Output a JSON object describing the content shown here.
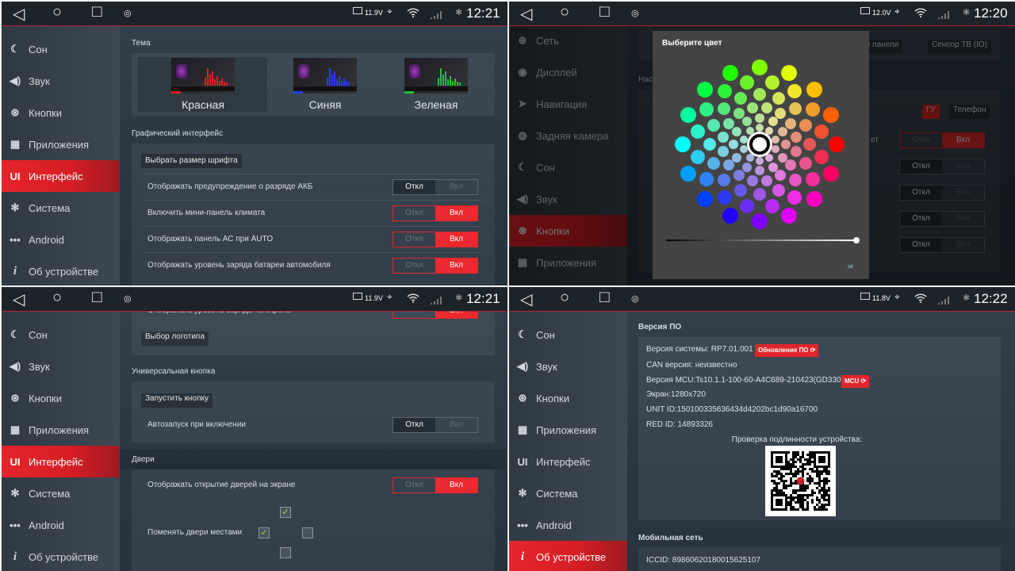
{
  "accent": "#e8232b",
  "toggle_labels": {
    "off": "Откл",
    "on": "Вкл"
  },
  "panels": [
    {
      "status": {
        "voltage": "11.9V",
        "time": "12:21"
      },
      "sidebar": {
        "selected": 4,
        "items": [
          {
            "label": "Сон",
            "icon": "moon-icon"
          },
          {
            "label": "Звук",
            "icon": "speaker-icon"
          },
          {
            "label": "Кнопки",
            "icon": "steering-wheel-icon"
          },
          {
            "label": "Приложения",
            "icon": "apps-icon"
          },
          {
            "label": "Интерфейс",
            "icon": "ui-icon"
          },
          {
            "label": "Система",
            "icon": "gears-icon"
          },
          {
            "label": "Android",
            "icon": "dots-icon"
          },
          {
            "label": "Об устройстве",
            "icon": "info-icon"
          }
        ]
      },
      "theme_title": "Тема",
      "themes": [
        {
          "label": "Красная",
          "color": "#e02020",
          "selected": true
        },
        {
          "label": "Синяя",
          "color": "#2a3cf0",
          "selected": false
        },
        {
          "label": "Зеленая",
          "color": "#22c23a",
          "selected": false
        }
      ],
      "gui_title": "Графический интерфейс",
      "font_button": "Выбрать размер шрифта",
      "rows": [
        {
          "label": "Отображать предупреждение о разряде АКБ",
          "state": "off"
        },
        {
          "label": "Включить мини-панель климата",
          "state": "on"
        },
        {
          "label": "Отображать панель АС при AUTO",
          "state": "on"
        },
        {
          "label": "Отображать уровень заряда батареи автомобиля",
          "state": "on"
        }
      ]
    },
    {
      "status": {
        "voltage": "12.0V",
        "time": "12:20"
      },
      "sidebar": {
        "selected": 6,
        "items": [
          {
            "label": "Сеть",
            "icon": "globe-icon"
          },
          {
            "label": "Дисплей",
            "icon": "display-icon"
          },
          {
            "label": "Навигация",
            "icon": "navigation-icon"
          },
          {
            "label": "Задняя камера",
            "icon": "camera-icon"
          },
          {
            "label": "Сон",
            "icon": "moon-icon"
          },
          {
            "label": "Звук",
            "icon": "speaker-icon"
          },
          {
            "label": "Кнопки",
            "icon": "steering-wheel-icon"
          },
          {
            "label": "Приложения",
            "icon": "apps-icon"
          }
        ]
      },
      "bg": {
        "tab_buttons": [
          "Кнопки панели",
          "Сенсор ТВ (IO)"
        ],
        "section_fragment": "Нас",
        "source_buttons": [
          {
            "label": "ГУ",
            "active": true
          },
          {
            "label": "Телефон",
            "active": false
          }
        ],
        "row_fragment": "ет",
        "toggles": [
          "on",
          "off",
          "off",
          "off",
          "off"
        ]
      },
      "dialog": {
        "title": "Выберите цвет",
        "selected_color": "#ffffff",
        "brightness": 1.0,
        "ok": "ок"
      }
    },
    {
      "status": {
        "voltage": "11.9V",
        "time": "12:21"
      },
      "sidebar": {
        "selected": 4,
        "items": [
          {
            "label": "Сон",
            "icon": "moon-icon"
          },
          {
            "label": "Звук",
            "icon": "speaker-icon"
          },
          {
            "label": "Кнопки",
            "icon": "steering-wheel-icon"
          },
          {
            "label": "Приложения",
            "icon": "apps-icon"
          },
          {
            "label": "Интерфейс",
            "icon": "ui-icon"
          },
          {
            "label": "Система",
            "icon": "gears-icon"
          },
          {
            "label": "Android",
            "icon": "dots-icon"
          },
          {
            "label": "Об устройстве",
            "icon": "info-icon"
          }
        ]
      },
      "top_row": {
        "label": "Отображать уровень заряда телефона",
        "state": "on"
      },
      "logo_button": "Выбор логотипа",
      "universal_title": "Универсальная кнопка",
      "launch_button": "Запустить кнопку",
      "autostart": {
        "label": "Автозапуск при включении",
        "state": "off"
      },
      "doors_title": "Двери",
      "doors_row": {
        "label": "Отображать открытие дверей на экране",
        "state": "on"
      },
      "swap_label": "Поменять двери местами",
      "swap_checks": {
        "top": true,
        "left": true,
        "right": false,
        "bottom": false
      }
    },
    {
      "status": {
        "voltage": "11.8V",
        "time": "12:22"
      },
      "sidebar": {
        "selected": 7,
        "items": [
          {
            "label": "Сон",
            "icon": "moon-icon"
          },
          {
            "label": "Звук",
            "icon": "speaker-icon"
          },
          {
            "label": "Кнопки",
            "icon": "steering-wheel-icon"
          },
          {
            "label": "Приложения",
            "icon": "apps-icon"
          },
          {
            "label": "Интерфейс",
            "icon": "ui-icon"
          },
          {
            "label": "Система",
            "icon": "gears-icon"
          },
          {
            "label": "Android",
            "icon": "dots-icon"
          },
          {
            "label": "Об устройстве",
            "icon": "info-icon"
          }
        ]
      },
      "sw_title": "Версия ПО",
      "lines": [
        "Версия системы: RP7.01.001",
        "CAN версия: неизвестно",
        "Версия MCU:Ts10.1.1-100-60-A4C689-210423(GD330)",
        "Экран:1280x720",
        "UNIT ID:150100335636434d4202bc1d90a16700",
        "RED ID: 14893326"
      ],
      "update_badge": "Обновление ПО ⟳",
      "mcu_badge": "MCU ⟳",
      "verify_label": "Проверка подлинности устройства:",
      "mobile_title": "Мобильная сеть",
      "iccid": "ICCID:  89860620180015625107"
    }
  ]
}
